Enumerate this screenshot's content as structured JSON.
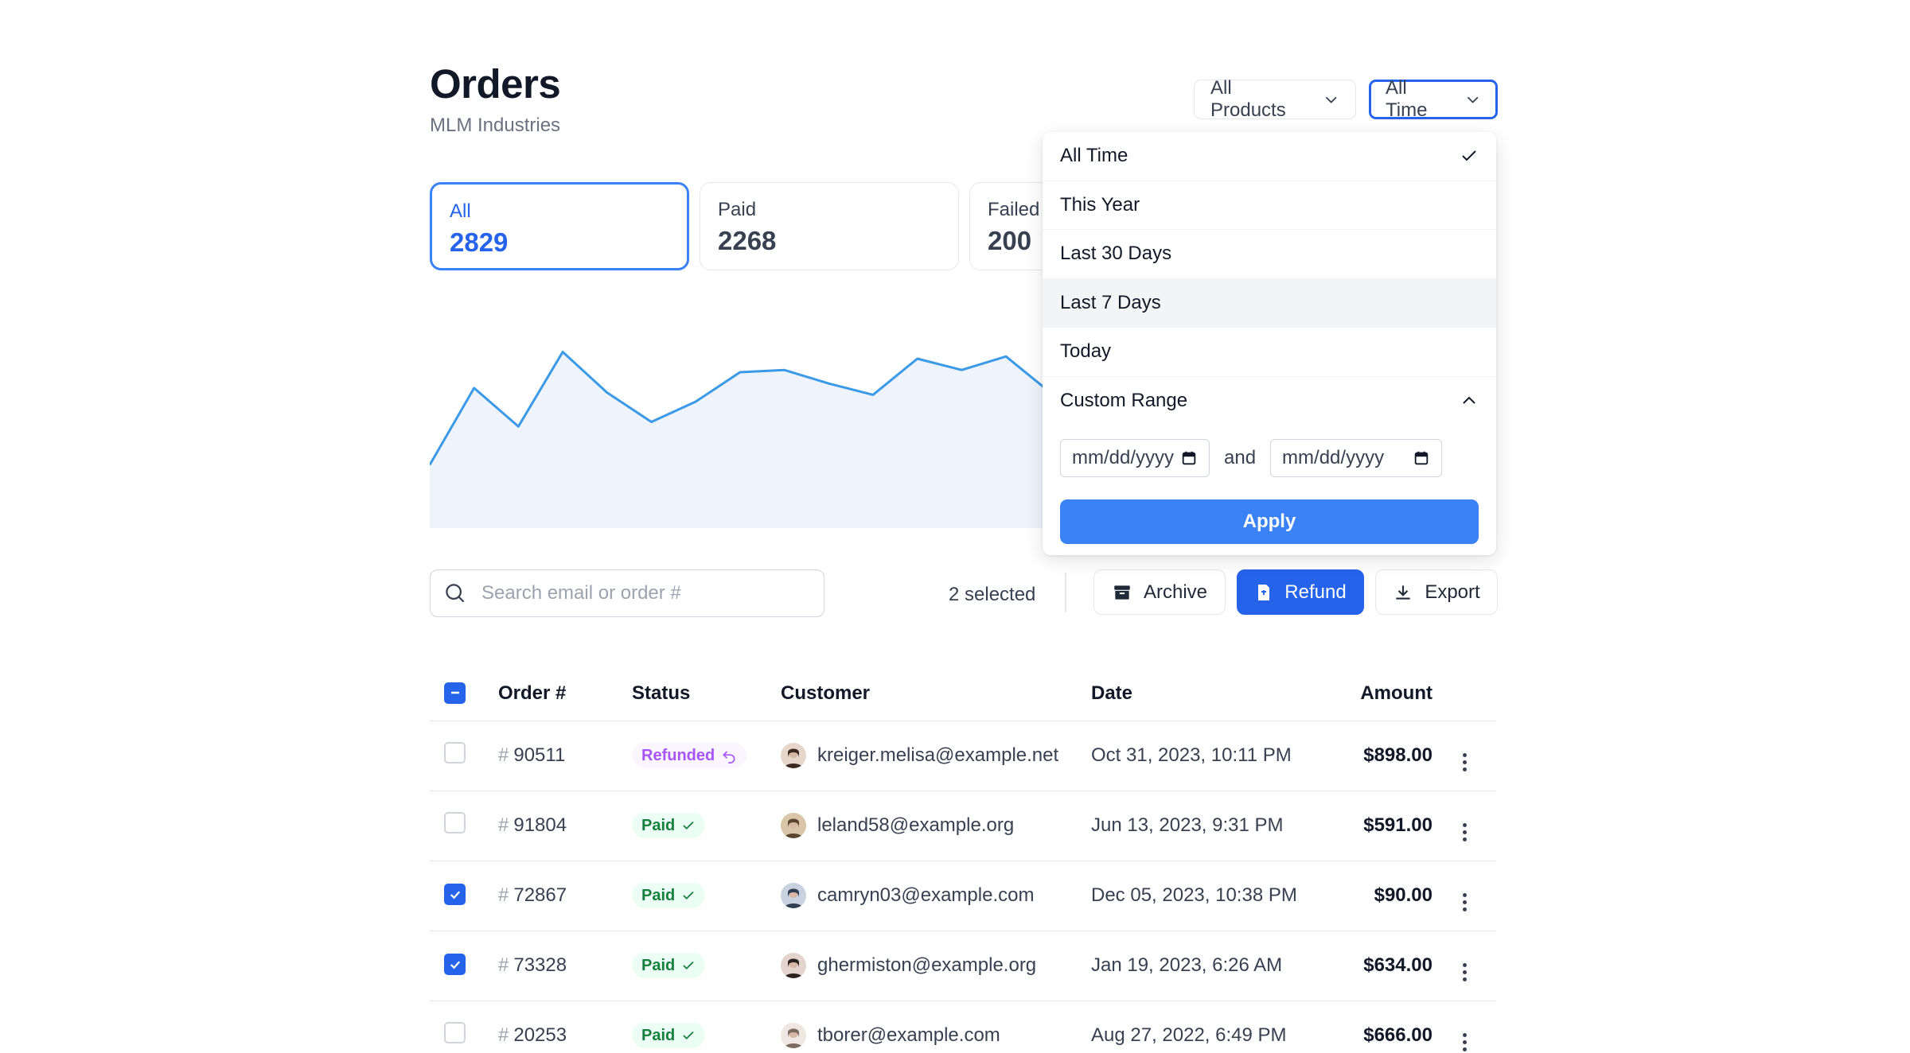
{
  "header": {
    "title": "Orders",
    "subtitle": "MLM Industries"
  },
  "filters": {
    "products_label": "All Products",
    "time_label": "All Time"
  },
  "stats": [
    {
      "label": "All",
      "value": "2829"
    },
    {
      "label": "Paid",
      "value": "2268"
    },
    {
      "label": "Failed",
      "value": "200"
    }
  ],
  "chart_data": {
    "type": "area",
    "title": "",
    "xlabel": "",
    "ylabel": "",
    "grid": false,
    "legend": "none",
    "color": "#3b9ae8",
    "fill": "#eff4fc",
    "values": [
      28,
      62,
      45,
      78,
      60,
      47,
      56,
      69,
      70,
      64,
      59,
      75,
      70,
      76,
      60
    ],
    "ylim": [
      0,
      100
    ]
  },
  "dropdown": {
    "options": [
      "All Time",
      "This Year",
      "Last 30 Days",
      "Last 7 Days",
      "Today"
    ],
    "selected": "All Time",
    "highlighted": "Last 7 Days",
    "custom_label": "Custom Range",
    "date_placeholder_start": "mm/dd/yyyy",
    "and_label": "and",
    "date_placeholder_end": "mm/dd/yyyy",
    "apply_label": "Apply"
  },
  "toolbar": {
    "search_placeholder": "Search email or order #",
    "selected_text": "2 selected",
    "archive_label": "Archive",
    "refund_label": "Refund",
    "export_label": "Export"
  },
  "table": {
    "columns": [
      "Order #",
      "Status",
      "Customer",
      "Date",
      "Amount"
    ],
    "hash": "#",
    "rows": [
      {
        "checked": false,
        "order": "90511",
        "status": "Refunded",
        "customer": "kreiger.melisa@example.net",
        "date": "Oct 31, 2023, 10:11 PM",
        "amount": "$898.00"
      },
      {
        "checked": false,
        "order": "91804",
        "status": "Paid",
        "customer": "leland58@example.org",
        "date": "Jun 13, 2023, 9:31 PM",
        "amount": "$591.00"
      },
      {
        "checked": true,
        "order": "72867",
        "status": "Paid",
        "customer": "camryn03@example.com",
        "date": "Dec 05, 2023, 10:38 PM",
        "amount": "$90.00"
      },
      {
        "checked": true,
        "order": "73328",
        "status": "Paid",
        "customer": "ghermiston@example.org",
        "date": "Jan 19, 2023, 6:26 AM",
        "amount": "$634.00"
      },
      {
        "checked": false,
        "order": "20253",
        "status": "Paid",
        "customer": "tborer@example.com",
        "date": "Aug 27, 2022, 6:49 PM",
        "amount": "$666.00"
      }
    ]
  },
  "colors": {
    "accent": "#2563eb",
    "paid": "#15803d",
    "refunded": "#a855f7"
  },
  "icons": {
    "search": "search-icon",
    "archive": "archive-icon",
    "refund": "receipt-icon",
    "export": "download-icon"
  }
}
